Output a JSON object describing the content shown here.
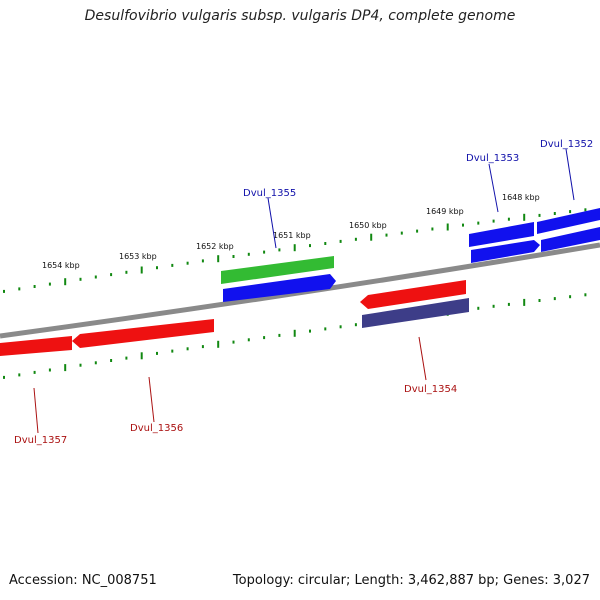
{
  "title": "Desulfovibrio vulgaris subsp. vulgaris DP4, complete genome",
  "footer": {
    "accession": "Accession: NC_008751",
    "stats": "Topology: circular; Length: 3,462,887 bp; Genes: 3,027"
  },
  "scale_ticks": [
    "1648 kbp",
    "1649 kbp",
    "1650 kbp",
    "1651 kbp",
    "1652 kbp",
    "1653 kbp",
    "1654 kbp"
  ],
  "genes": [
    {
      "label": "Dvul_1352",
      "strand": "forward",
      "color": "#1111ee"
    },
    {
      "label": "Dvul_1353",
      "strand": "forward",
      "color": "#1111ee"
    },
    {
      "label": "Dvul_1354",
      "strand": "reverse",
      "color": "#dd1111"
    },
    {
      "label": "Dvul_1355",
      "strand": "forward",
      "color": "#1111ee"
    },
    {
      "label": "Dvul_1356",
      "strand": "reverse",
      "color": "#dd1111"
    },
    {
      "label": "Dvul_1357",
      "strand": "reverse",
      "color": "#dd1111"
    }
  ],
  "colors": {
    "backbone": "#8a8a8a",
    "forward_cds": "#1111ee",
    "reverse_cds": "#ee1111",
    "forward_feature": "#33bb33",
    "reverse_feature": "#3d3d88",
    "tick": "#118811"
  }
}
